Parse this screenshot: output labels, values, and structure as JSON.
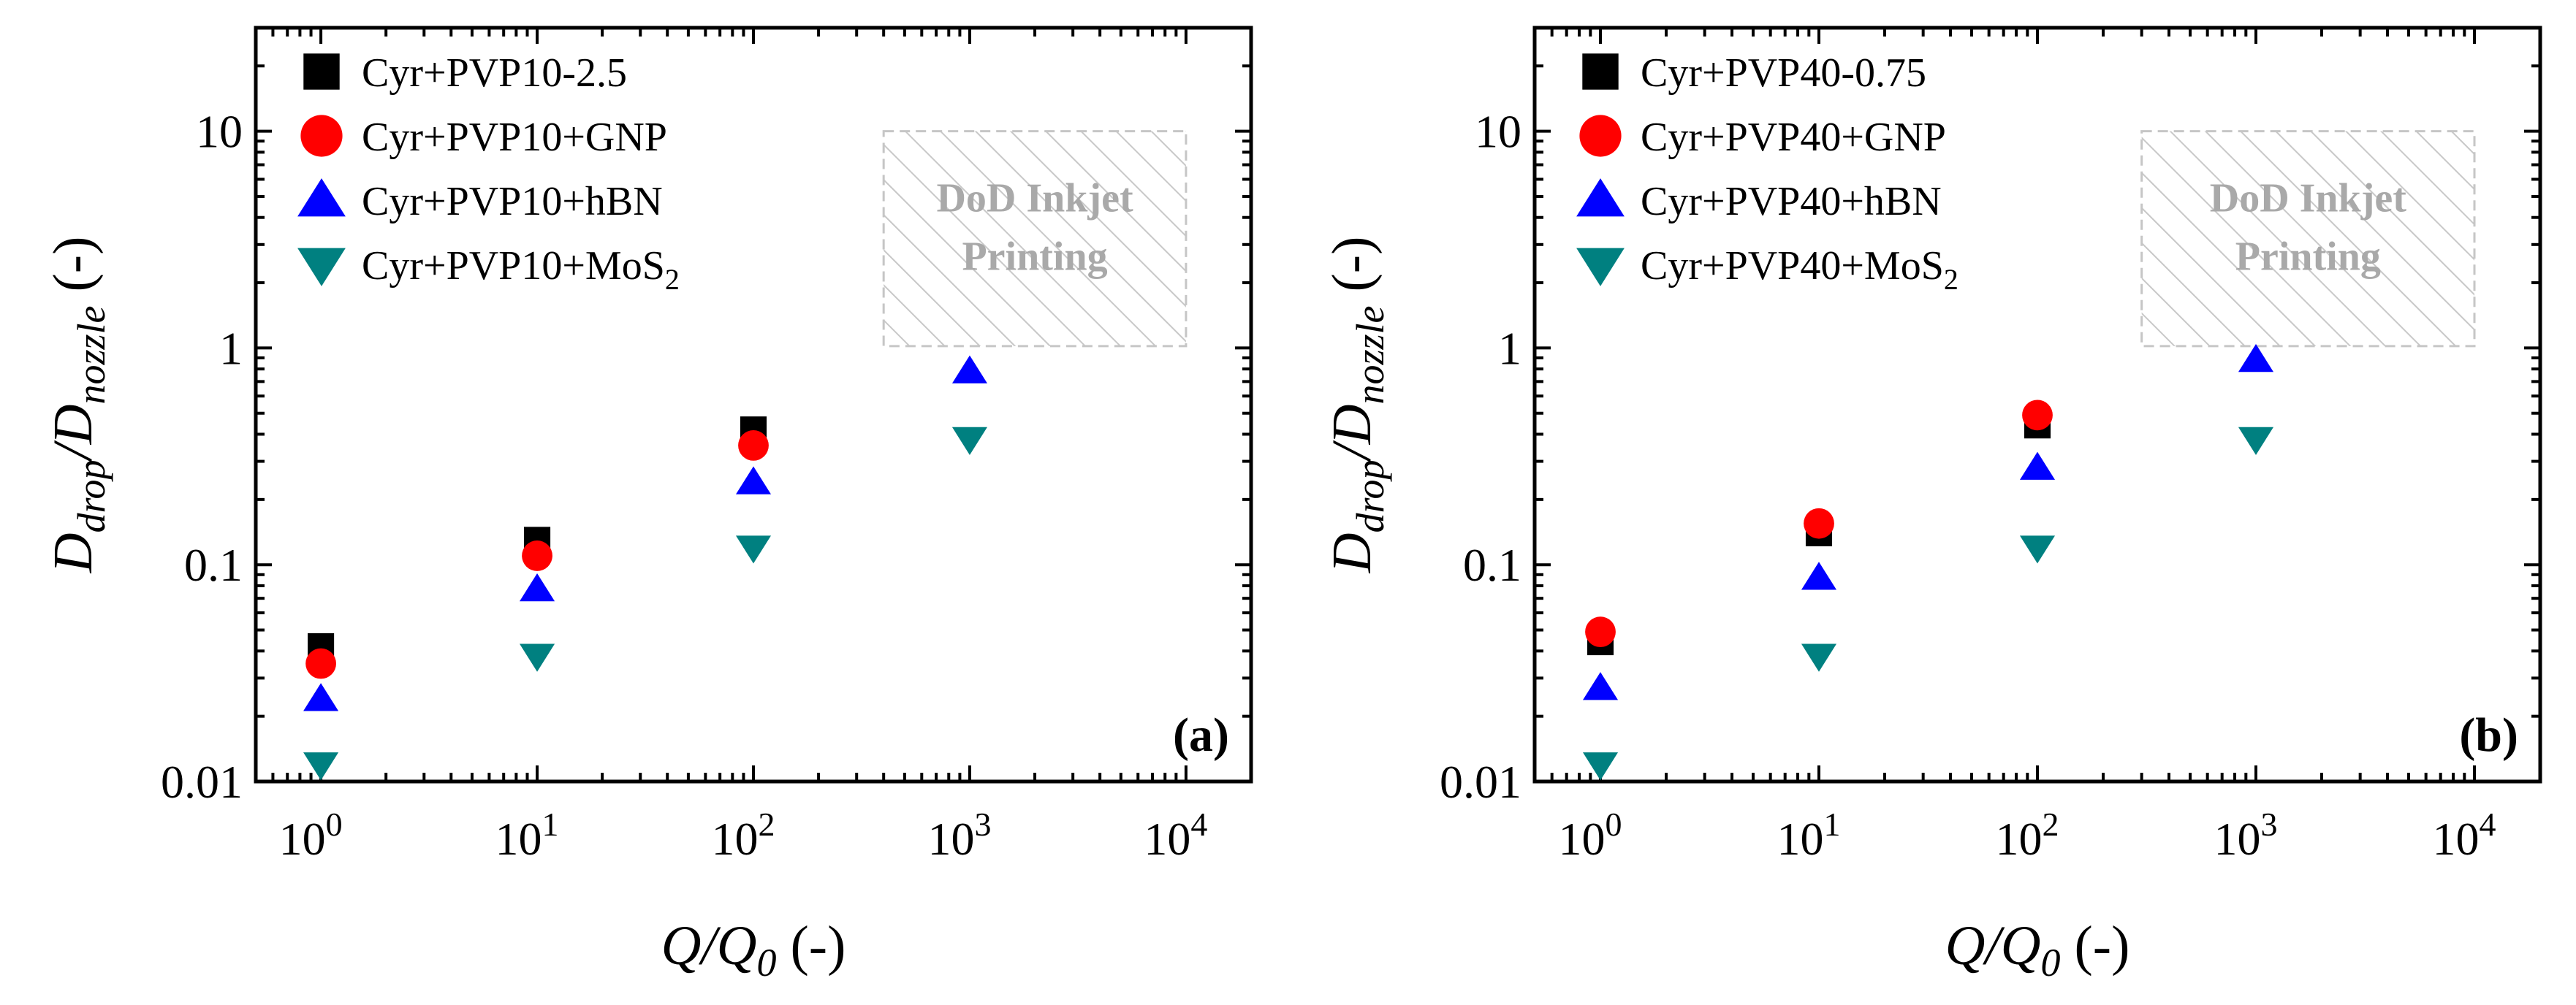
{
  "chart_data": [
    {
      "type": "scatter",
      "panel_label": "(a)",
      "xlabel": {
        "main": "Q/Q",
        "sub": "0",
        "unit": " (-)"
      },
      "ylabel": {
        "main1": "D",
        "sub1": "drop",
        "main2": "/D",
        "sub2": "nozzle",
        "unit": " (-)"
      },
      "x_scale": "log",
      "y_scale": "log",
      "xlim": [
        0.5,
        20000
      ],
      "ylim": [
        0.01,
        30
      ],
      "x_ticks": [
        {
          "value": 1,
          "base": "10",
          "exp": "0"
        },
        {
          "value": 10,
          "base": "10",
          "exp": "1"
        },
        {
          "value": 100,
          "base": "10",
          "exp": "2"
        },
        {
          "value": 1000,
          "base": "10",
          "exp": "3"
        },
        {
          "value": 10000,
          "base": "10",
          "exp": "4"
        }
      ],
      "y_ticks": [
        {
          "value": 0.01,
          "label": "0.01"
        },
        {
          "value": 0.1,
          "label": "0.1"
        },
        {
          "value": 1,
          "label": "1"
        },
        {
          "value": 10,
          "label": "10"
        }
      ],
      "region": {
        "line1": "DoD Inkjet",
        "line2": "Printing",
        "x_range": [
          400,
          10000
        ],
        "y_range": [
          1.02,
          10
        ]
      },
      "legend_position": "top-left",
      "series": [
        {
          "name": "Cyr+PVP10-2.5",
          "marker": "square",
          "color": "#000000",
          "points": [
            [
              1,
              0.042
            ],
            [
              10,
              0.13
            ],
            [
              100,
              0.42
            ]
          ]
        },
        {
          "name": "Cyr+PVP10+GNP",
          "marker": "circle",
          "color": "#ff0000",
          "points": [
            [
              1,
              0.035
            ],
            [
              10,
              0.11
            ],
            [
              100,
              0.355
            ]
          ]
        },
        {
          "name": "Cyr+PVP10+hBN",
          "marker": "triangle-up",
          "color": "#0000ff",
          "points": [
            [
              1,
              0.024
            ],
            [
              10,
              0.077
            ],
            [
              100,
              0.24
            ],
            [
              1000,
              0.78
            ]
          ]
        },
        {
          "name": "Cyr+PVP10+MoS",
          "name_sub": "2",
          "marker": "triangle-down",
          "color": "#008080",
          "points": [
            [
              1,
              0.012
            ],
            [
              10,
              0.038
            ],
            [
              100,
              0.12
            ],
            [
              1000,
              0.38
            ]
          ]
        }
      ]
    },
    {
      "type": "scatter",
      "panel_label": "(b)",
      "xlabel": {
        "main": "Q/Q",
        "sub": "0",
        "unit": " (-)"
      },
      "ylabel": {
        "main1": "D",
        "sub1": "drop",
        "main2": "/D",
        "sub2": "nozzle",
        "unit": " (-)"
      },
      "x_scale": "log",
      "y_scale": "log",
      "xlim": [
        0.5,
        20000
      ],
      "ylim": [
        0.01,
        30
      ],
      "x_ticks": [
        {
          "value": 1,
          "base": "10",
          "exp": "0"
        },
        {
          "value": 10,
          "base": "10",
          "exp": "1"
        },
        {
          "value": 100,
          "base": "10",
          "exp": "2"
        },
        {
          "value": 1000,
          "base": "10",
          "exp": "3"
        },
        {
          "value": 10000,
          "base": "10",
          "exp": "4"
        }
      ],
      "y_ticks": [
        {
          "value": 0.01,
          "label": "0.01"
        },
        {
          "value": 0.1,
          "label": "0.1"
        },
        {
          "value": 1,
          "label": "1"
        },
        {
          "value": 10,
          "label": "10"
        }
      ],
      "region": {
        "line1": "DoD Inkjet",
        "line2": "Printing",
        "x_range": [
          300,
          10000
        ],
        "y_range": [
          1.02,
          10
        ]
      },
      "legend_position": "top-left",
      "series": [
        {
          "name": "Cyr+PVP40-0.75",
          "marker": "square",
          "color": "#000000",
          "points": [
            [
              1,
              0.044
            ],
            [
              10,
              0.14
            ],
            [
              100,
              0.44
            ]
          ]
        },
        {
          "name": "Cyr+PVP40+GNP",
          "marker": "circle",
          "color": "#ff0000",
          "points": [
            [
              1,
              0.049
            ],
            [
              10,
              0.155
            ],
            [
              100,
              0.49
            ]
          ]
        },
        {
          "name": "Cyr+PVP40+hBN",
          "marker": "triangle-up",
          "color": "#0000ff",
          "points": [
            [
              1,
              0.027
            ],
            [
              10,
              0.087
            ],
            [
              100,
              0.28
            ],
            [
              1000,
              0.88
            ]
          ]
        },
        {
          "name": "Cyr+PVP40+MoS",
          "name_sub": "2",
          "marker": "triangle-down",
          "color": "#008080",
          "points": [
            [
              1,
              0.012
            ],
            [
              10,
              0.038
            ],
            [
              100,
              0.12
            ],
            [
              1000,
              0.38
            ]
          ]
        }
      ]
    }
  ]
}
